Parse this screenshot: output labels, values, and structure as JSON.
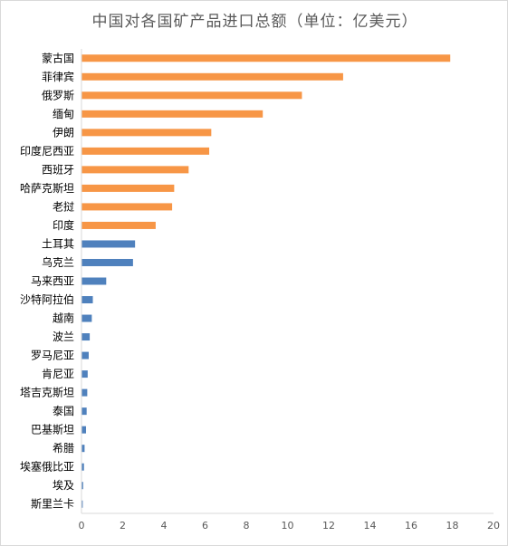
{
  "chart_data": {
    "type": "bar",
    "orientation": "horizontal",
    "title": "中国对各国矿产品进口总额（单位：亿美元）",
    "xlim": [
      0,
      20
    ],
    "xticks": [
      "0",
      "2",
      "4",
      "6",
      "8",
      "10",
      "12",
      "14",
      "16",
      "18",
      "20"
    ],
    "grid": false,
    "legend": "none",
    "colors": {
      "top": "#F79646",
      "rest": "#4F81BD"
    },
    "categories": [
      "蒙古国",
      "菲律宾",
      "俄罗斯",
      "缅甸",
      "伊朗",
      "印度尼西亚",
      "西班牙",
      "哈萨克斯坦",
      "老挝",
      "印度",
      "土耳其",
      "乌克兰",
      "马来西亚",
      "沙特阿拉伯",
      "越南",
      "波兰",
      "罗马尼亚",
      "肯尼亚",
      "塔吉克斯坦",
      "泰国",
      "巴基斯坦",
      "希腊",
      "埃塞俄比亚",
      "埃及",
      "斯里兰卡"
    ],
    "values": [
      17.9,
      12.7,
      10.7,
      8.8,
      6.3,
      6.2,
      5.2,
      4.5,
      4.4,
      3.6,
      2.6,
      2.5,
      1.2,
      0.55,
      0.5,
      0.4,
      0.35,
      0.3,
      0.28,
      0.25,
      0.22,
      0.15,
      0.12,
      0.08,
      0.06
    ],
    "highlight_count": 10
  }
}
